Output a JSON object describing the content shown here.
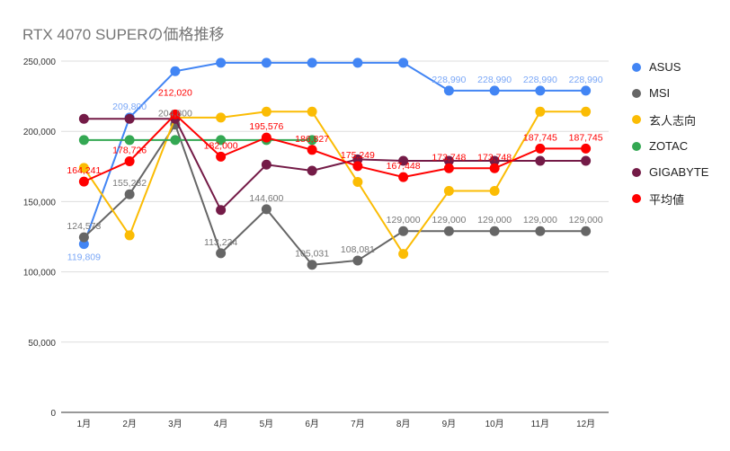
{
  "chart_data": {
    "type": "line",
    "title": "RTX 4070 SUPERの価格推移",
    "categories": [
      "1月",
      "2月",
      "3月",
      "4月",
      "5月",
      "6月",
      "7月",
      "8月",
      "9月",
      "10月",
      "11月",
      "12月"
    ],
    "ylim": [
      0,
      250000
    ],
    "yticks": [
      0,
      50000,
      100000,
      150000,
      200000,
      250000
    ],
    "ytick_labels": [
      "0",
      "50,000",
      "100,000",
      "150,000",
      "200,000",
      "250,000"
    ],
    "grid": true,
    "legend": "right",
    "series": [
      {
        "name": "ASUS",
        "color": "#4285f4",
        "values": [
          119809,
          209800,
          242800,
          248800,
          248800,
          248800,
          248800,
          248800,
          228990,
          228990,
          228990,
          228990
        ],
        "labels": [
          "119,809",
          "209,800",
          null,
          null,
          null,
          null,
          null,
          null,
          "228,990",
          "228,990",
          "228,990",
          "228,990"
        ]
      },
      {
        "name": "MSI",
        "color": "#666666",
        "values": [
          124573,
          155232,
          204800,
          113224,
          144600,
          105031,
          108081,
          129000,
          129000,
          129000,
          129000,
          129000
        ],
        "labels": [
          "124,573",
          "155,232",
          "204,800",
          "113,224",
          "144,600",
          "105,031",
          "108,081",
          "129,000",
          "129,000",
          "129,000",
          "129,000",
          "129,000"
        ]
      },
      {
        "name": "玄人志向",
        "color": "#fbbc04",
        "values": [
          174000,
          126000,
          209800,
          209800,
          214000,
          214000,
          164000,
          112800,
          157600,
          157600,
          214000,
          214000
        ],
        "labels": [
          null,
          null,
          null,
          null,
          null,
          null,
          null,
          null,
          null,
          null,
          null,
          null
        ]
      },
      {
        "name": "ZOTAC",
        "color": "#34a853",
        "values": [
          193800,
          193800,
          193800,
          193800,
          193800,
          193800,
          null,
          null,
          null,
          null,
          null,
          null
        ],
        "labels": [
          null,
          null,
          null,
          null,
          null,
          null,
          null,
          null,
          null,
          null,
          null,
          null
        ]
      },
      {
        "name": "GIGABYTE",
        "color": "#741b47",
        "values": [
          208900,
          208900,
          208900,
          144000,
          176300,
          172000,
          180100,
          179000,
          179000,
          179000,
          179000,
          179000
        ],
        "labels": [
          null,
          null,
          null,
          null,
          null,
          null,
          null,
          null,
          null,
          null,
          null,
          null
        ]
      },
      {
        "name": "平均値",
        "color": "#ff0000",
        "values": [
          164241,
          178726,
          212020,
          182000,
          195576,
          186827,
          175249,
          167448,
          173748,
          173748,
          187745,
          187745
        ],
        "labels": [
          "164,241",
          "178,726",
          "212,020",
          "182,000",
          "195,576",
          "186,827",
          "175,249",
          "167,448",
          "173,748",
          "173,748",
          "187,745",
          "187,745"
        ]
      }
    ]
  }
}
